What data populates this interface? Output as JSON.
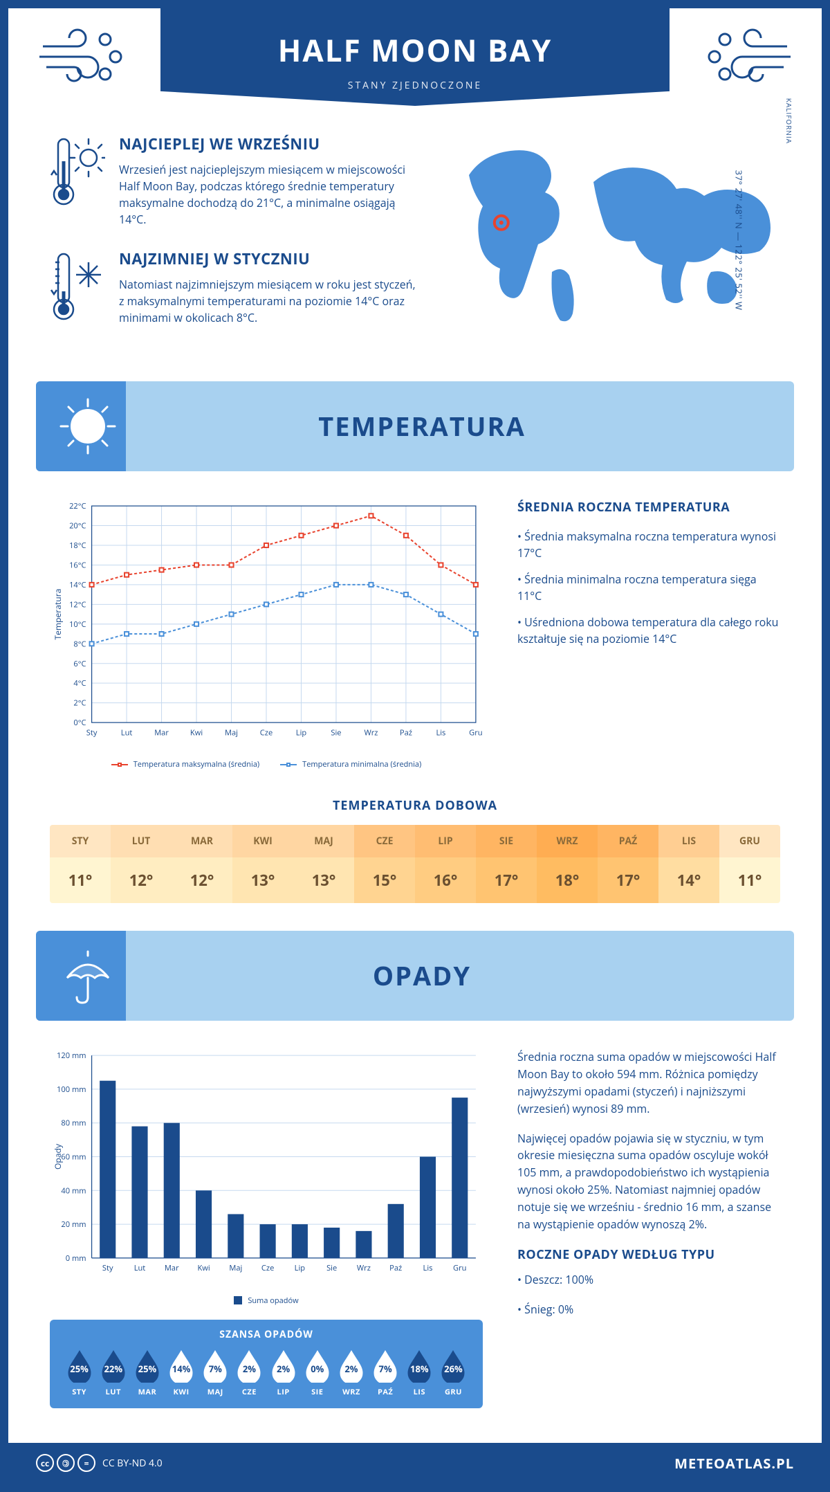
{
  "header": {
    "title": "HALF MOON BAY",
    "subtitle": "STANY ZJEDNOCZONE"
  },
  "location": {
    "coords": "37° 27' 48'' N — 122° 25' 52'' W",
    "region": "KALIFORNIA",
    "marker_color": "#e8432e",
    "map_color": "#4a90d9",
    "marker_pos": [
      0.16,
      0.46
    ]
  },
  "facts": {
    "warmest": {
      "title": "NAJCIEPLEJ WE WRZEŚNIU",
      "text": "Wrzesień jest najcieplejszym miesiącem w miejscowości Half Moon Bay, podczas którego średnie temperatury maksymalne dochodzą do 21°C, a minimalne osiągają 14°C."
    },
    "coldest": {
      "title": "NAJZIMNIEJ W STYCZNIU",
      "text": "Natomiast najzimniejszym miesiącem w roku jest styczeń, z maksymalnymi temperaturami na poziomie 14°C oraz minimami w okolicach 8°C."
    }
  },
  "sections": {
    "temperature_title": "TEMPERATURA",
    "precip_title": "OPADY"
  },
  "temp_chart": {
    "type": "line",
    "months": [
      "Sty",
      "Lut",
      "Mar",
      "Kwi",
      "Maj",
      "Cze",
      "Lip",
      "Sie",
      "Wrz",
      "Paź",
      "Lis",
      "Gru"
    ],
    "max_values": [
      14,
      15,
      15.5,
      16,
      16,
      18,
      19,
      20,
      21,
      19,
      16,
      14
    ],
    "min_values": [
      8,
      9,
      9,
      10,
      11,
      12,
      13,
      14,
      14,
      13,
      11,
      9
    ],
    "max_color": "#e8432e",
    "min_color": "#4a90d9",
    "ylabel": "Temperatura",
    "ymin": 0,
    "ymax": 22,
    "ystep": 2,
    "grid_color": "#c5d9ef",
    "axis_color": "#1a4b8c",
    "tick_suffix": "°C",
    "legend_max": "Temperatura maksymalna (średnia)",
    "legend_min": "Temperatura minimalna (średnia)"
  },
  "temp_side": {
    "title": "ŚREDNIA ROCZNA TEMPERATURA",
    "bullets": [
      "• Średnia maksymalna roczna temperatura wynosi 17°C",
      "• Średnia minimalna roczna temperatura sięga 11°C",
      "• Uśredniona dobowa temperatura dla całego roku kształtuje się na poziomie 14°C"
    ]
  },
  "daily": {
    "title": "TEMPERATURA DOBOWA",
    "months": [
      "STY",
      "LUT",
      "MAR",
      "KWI",
      "MAJ",
      "CZE",
      "LIP",
      "SIE",
      "WRZ",
      "PAŹ",
      "LIS",
      "GRU"
    ],
    "values": [
      "11°",
      "12°",
      "12°",
      "13°",
      "13°",
      "15°",
      "16°",
      "17°",
      "18°",
      "17°",
      "14°",
      "11°"
    ],
    "color_min": "#ffe6c2",
    "color_max": "#ffad52",
    "scale_min": 11,
    "scale_max": 18
  },
  "precip_chart": {
    "type": "bar",
    "months": [
      "Sty",
      "Lut",
      "Mar",
      "Kwi",
      "Maj",
      "Cze",
      "Lip",
      "Sie",
      "Wrz",
      "Paź",
      "Lis",
      "Gru"
    ],
    "values": [
      105,
      78,
      80,
      40,
      26,
      20,
      20,
      18,
      16,
      32,
      60,
      95
    ],
    "bar_color": "#1a4b8c",
    "ylabel": "Opady",
    "ymin": 0,
    "ymax": 120,
    "ystep": 20,
    "grid_color": "#c5d9ef",
    "axis_color": "#1a4b8c",
    "tick_suffix": " mm",
    "legend": "Suma opadów"
  },
  "precip_side": {
    "para1": "Średnia roczna suma opadów w miejscowości Half Moon Bay to około 594 mm. Różnica pomiędzy najwyższymi opadami (styczeń) i najniższymi (wrzesień) wynosi 89 mm.",
    "para2": "Najwięcej opadów pojawia się w styczniu, w tym okresie miesięczna suma opadów oscyluje wokół 105 mm, a prawdopodobieństwo ich wystąpienia wynosi około 25%. Natomiast najmniej opadów notuje się we wrześniu - średnio 16 mm, a szanse na wystąpienie opadów wynoszą 2%.",
    "type_title": "ROCZNE OPADY WEDŁUG TYPU",
    "types": [
      "• Deszcz: 100%",
      "• Śnieg: 0%"
    ]
  },
  "chance": {
    "title": "SZANSA OPADÓW",
    "months": [
      "STY",
      "LUT",
      "MAR",
      "KWI",
      "MAJ",
      "CZE",
      "LIP",
      "SIE",
      "WRZ",
      "PAŹ",
      "LIS",
      "GRU"
    ],
    "values": [
      25,
      22,
      25,
      14,
      7,
      2,
      2,
      0,
      2,
      7,
      18,
      26
    ],
    "box_bg": "#4a90d9",
    "drop_fill_high": "#1a4b8c",
    "drop_fill_low": "#ffffff",
    "threshold": 15
  },
  "footer": {
    "license": "CC BY-ND 4.0",
    "site": "METEOATLAS.PL"
  },
  "colors": {
    "primary": "#1a4b8c",
    "light_blue": "#a8d1f0",
    "mid_blue": "#4a90d9",
    "orange": "#e8432e"
  }
}
